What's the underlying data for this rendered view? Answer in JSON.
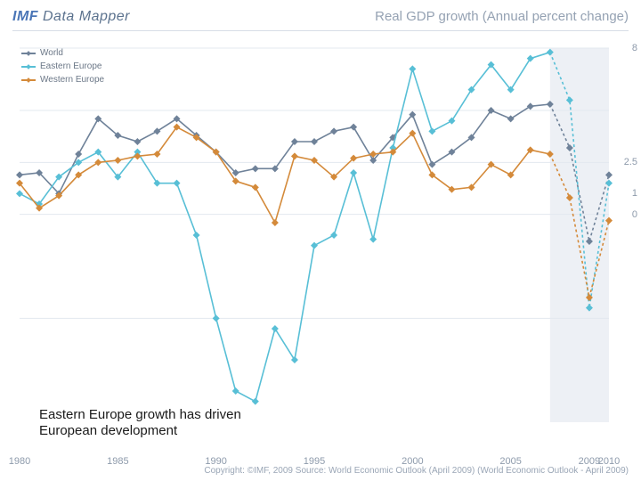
{
  "header": {
    "logo_brand": "IMF",
    "logo_product": "Data Mapper",
    "subtitle": "Real GDP growth (Annual percent change)"
  },
  "legend": [
    {
      "label": "World",
      "color": "#6f8299"
    },
    {
      "label": "Eastern Europe",
      "color": "#58bfd6"
    },
    {
      "label": "Western Europe",
      "color": "#d48a3a"
    }
  ],
  "chart": {
    "type": "line",
    "background_color": "#ffffff",
    "gridline_color": "#e3e8ef",
    "axis_text_color": "#8d9aab",
    "projection_band_color": "#edf0f5",
    "projection_start_year": 2007,
    "x": {
      "min": 1980,
      "max": 2010,
      "tick_years": [
        1980,
        1985,
        1990,
        1995,
        2000,
        2005,
        2009,
        2010
      ]
    },
    "y": {
      "min": -10,
      "max": 8,
      "right_ticks": [
        0,
        1,
        2.5,
        8
      ]
    },
    "gridlines_y": [
      -5,
      0,
      2.5,
      5,
      8
    ],
    "line_width": 1.6,
    "marker": {
      "shape": "diamond",
      "size": 4
    },
    "series": [
      {
        "name": "World",
        "color": "#6f8299",
        "dash_after_year": 2007,
        "points": [
          [
            1980,
            1.9
          ],
          [
            1981,
            2.0
          ],
          [
            1982,
            1.0
          ],
          [
            1983,
            2.9
          ],
          [
            1984,
            4.6
          ],
          [
            1985,
            3.8
          ],
          [
            1986,
            3.5
          ],
          [
            1987,
            4.0
          ],
          [
            1988,
            4.6
          ],
          [
            1989,
            3.8
          ],
          [
            1990,
            3.0
          ],
          [
            1991,
            2.0
          ],
          [
            1992,
            2.2
          ],
          [
            1993,
            2.2
          ],
          [
            1994,
            3.5
          ],
          [
            1995,
            3.5
          ],
          [
            1996,
            4.0
          ],
          [
            1997,
            4.2
          ],
          [
            1998,
            2.6
          ],
          [
            1999,
            3.7
          ],
          [
            2000,
            4.8
          ],
          [
            2001,
            2.4
          ],
          [
            2002,
            3.0
          ],
          [
            2003,
            3.7
          ],
          [
            2004,
            5.0
          ],
          [
            2005,
            4.6
          ],
          [
            2006,
            5.2
          ],
          [
            2007,
            5.3
          ],
          [
            2008,
            3.2
          ],
          [
            2009,
            -1.3
          ],
          [
            2010,
            1.9
          ]
        ]
      },
      {
        "name": "Eastern Europe",
        "color": "#58bfd6",
        "dash_after_year": 2007,
        "points": [
          [
            1980,
            1.0
          ],
          [
            1981,
            0.5
          ],
          [
            1982,
            1.8
          ],
          [
            1983,
            2.5
          ],
          [
            1984,
            3.0
          ],
          [
            1985,
            1.8
          ],
          [
            1986,
            3.0
          ],
          [
            1987,
            1.5
          ],
          [
            1988,
            1.5
          ],
          [
            1989,
            -1.0
          ],
          [
            1990,
            -5.0
          ],
          [
            1991,
            -8.5
          ],
          [
            1992,
            -9.0
          ],
          [
            1993,
            -5.5
          ],
          [
            1994,
            -7.0
          ],
          [
            1995,
            -1.5
          ],
          [
            1996,
            -1.0
          ],
          [
            1997,
            2.0
          ],
          [
            1998,
            -1.2
          ],
          [
            1999,
            3.2
          ],
          [
            2000,
            7.0
          ],
          [
            2001,
            4.0
          ],
          [
            2002,
            4.5
          ],
          [
            2003,
            6.0
          ],
          [
            2004,
            7.2
          ],
          [
            2005,
            6.0
          ],
          [
            2006,
            7.5
          ],
          [
            2007,
            7.8
          ],
          [
            2008,
            5.5
          ],
          [
            2009,
            -4.5
          ],
          [
            2010,
            1.5
          ]
        ]
      },
      {
        "name": "Western Europe",
        "color": "#d48a3a",
        "dash_after_year": 2007,
        "points": [
          [
            1980,
            1.5
          ],
          [
            1981,
            0.3
          ],
          [
            1982,
            0.9
          ],
          [
            1983,
            1.9
          ],
          [
            1984,
            2.5
          ],
          [
            1985,
            2.6
          ],
          [
            1986,
            2.8
          ],
          [
            1987,
            2.9
          ],
          [
            1988,
            4.2
          ],
          [
            1989,
            3.7
          ],
          [
            1990,
            3.0
          ],
          [
            1991,
            1.6
          ],
          [
            1992,
            1.3
          ],
          [
            1993,
            -0.4
          ],
          [
            1994,
            2.8
          ],
          [
            1995,
            2.6
          ],
          [
            1996,
            1.8
          ],
          [
            1997,
            2.7
          ],
          [
            1998,
            2.9
          ],
          [
            1999,
            3.0
          ],
          [
            2000,
            3.9
          ],
          [
            2001,
            1.9
          ],
          [
            2002,
            1.2
          ],
          [
            2003,
            1.3
          ],
          [
            2004,
            2.4
          ],
          [
            2005,
            1.9
          ],
          [
            2006,
            3.1
          ],
          [
            2007,
            2.9
          ],
          [
            2008,
            0.8
          ],
          [
            2009,
            -4.0
          ],
          [
            2010,
            -0.3
          ]
        ]
      }
    ]
  },
  "caption": "Eastern Europe growth has driven European development",
  "source_line": "Copyright: ©IMF, 2009 Source: World Economic Outlook (April 2009) (World Economic Outlook - April 2009)"
}
